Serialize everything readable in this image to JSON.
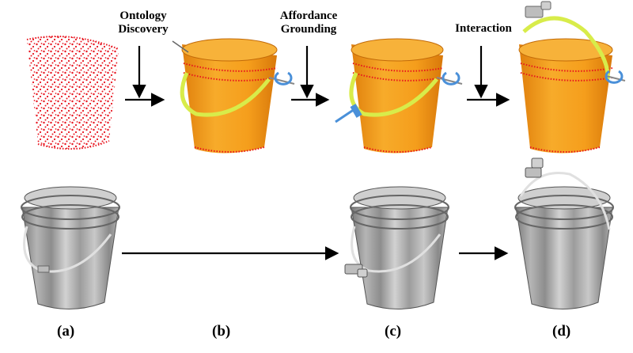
{
  "stage_labels": {
    "ontology": [
      "Ontology",
      "Discovery"
    ],
    "affordance": [
      "Affordance",
      "Grounding"
    ],
    "interaction": "Interaction"
  },
  "panels": {
    "a": "(a)",
    "b": "(b)",
    "c": "(c)",
    "d": "(d)"
  },
  "colors": {
    "bucket_orange": "#f5a21f",
    "point_red": "#e8141e",
    "handle_yellow": "#d8ec4a",
    "rotation_blue": "#4a90d9",
    "bucket_gray": "#b8b8b8"
  }
}
